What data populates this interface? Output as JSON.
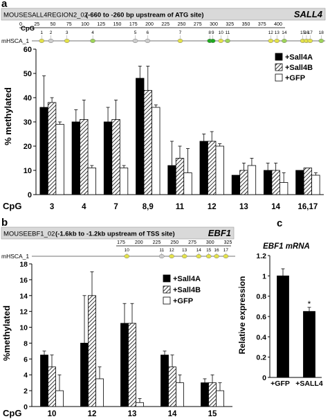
{
  "panels": {
    "a": {
      "letter": "a",
      "region_id": "MOUSESALL4REGION2_02",
      "region_range": "(-660 to -260 bp upstream of ATG site)",
      "gene": "SALL4",
      "cpg_label": "CpG",
      "track_label": "mHSCA_1",
      "bp_ticks": [
        "0",
        "25",
        "50",
        "75",
        "100",
        "125",
        "150",
        "175",
        "200",
        "225",
        "250",
        "275",
        "300",
        "325",
        "350",
        "375",
        "400"
      ],
      "sites": [
        {
          "n": "1",
          "bp": 16,
          "color": "#e3e14a"
        },
        {
          "n": "2",
          "bp": 31,
          "color": "#cccccc"
        },
        {
          "n": "3",
          "bp": 57,
          "color": "#e3e14a"
        },
        {
          "n": "4",
          "bp": 99,
          "color": "#9ed35a"
        },
        {
          "n": "5",
          "bp": 168,
          "color": "#cccccc"
        },
        {
          "n": "6",
          "bp": 188,
          "color": "#cccccc"
        },
        {
          "n": "7",
          "bp": 241,
          "color": "#e3e14a"
        },
        {
          "n": "8",
          "bp": 289,
          "color": "#1faa1f"
        },
        {
          "n": "9",
          "bp": 294,
          "color": "#1faa1f"
        },
        {
          "n": "10",
          "bp": 307,
          "color": "#e3e14a"
        },
        {
          "n": "11",
          "bp": 318,
          "color": "#9ed35a"
        },
        {
          "n": "12",
          "bp": 388,
          "color": "#e3e14a"
        },
        {
          "n": "13",
          "bp": 398,
          "color": "#e3e14a"
        },
        {
          "n": "14",
          "bp": 410,
          "color": "#9ed35a"
        },
        {
          "n": "15",
          "bp": 440,
          "color": "#e3e14a"
        },
        {
          "n": "16",
          "bp": 446,
          "color": "#e3e14a"
        },
        {
          "n": "17",
          "bp": 452,
          "color": "#e3e14a"
        },
        {
          "n": "18",
          "bp": 470,
          "color": "#9ed35a"
        }
      ]
    },
    "b": {
      "letter": "b",
      "region_id": "MOUSEEBF1_02",
      "region_range": "(-1.6kb to -1.2kb upstream of TSS site)",
      "gene": "EBF1",
      "track_label": "mHSCA_1",
      "bp_ticks": [
        "175",
        "200",
        "225",
        "250",
        "275",
        "300",
        "325"
      ],
      "sites": [
        {
          "n": "10",
          "bp": 183,
          "color": "#e3e14a"
        },
        {
          "n": "11",
          "bp": 232,
          "color": "#cccccc"
        },
        {
          "n": "12",
          "bp": 246,
          "color": "#e3e14a"
        },
        {
          "n": "13",
          "bp": 264,
          "color": "#e3e14a"
        },
        {
          "n": "14",
          "bp": 284,
          "color": "#e3e14a"
        },
        {
          "n": "15",
          "bp": 298,
          "color": "#e3e14a"
        },
        {
          "n": "16",
          "bp": 309,
          "color": "#e3e14a"
        },
        {
          "n": "17",
          "bp": 322,
          "color": "#e3e14a"
        }
      ]
    },
    "c": {
      "letter": "c",
      "title": "EBF1 mRNA"
    }
  },
  "colors": {
    "sall4a": "#000000",
    "sall4b_hatch": "#000000",
    "gfp": "#ffffff",
    "header_bg": "#d9d9d9"
  },
  "chart_data": [
    {
      "panel": "a",
      "type": "bar",
      "xlabel": "CpG",
      "ylabel": "% methylated",
      "categories": [
        "3",
        "4",
        "7",
        "8,9",
        "11",
        "12",
        "13",
        "14",
        "16,17"
      ],
      "ylim": [
        0,
        60
      ],
      "yticks": [
        "0",
        "10",
        "20",
        "30",
        "40",
        "50",
        "60"
      ],
      "legend": "top-right",
      "series": [
        {
          "name": "+Sall4A",
          "fill": "solid",
          "values": [
            36,
            30,
            30,
            48,
            12,
            22,
            8,
            10,
            10
          ],
          "errors": [
            13,
            5,
            6,
            5,
            10,
            3,
            0,
            3,
            0
          ]
        },
        {
          "name": "+Sall4B",
          "fill": "hatch",
          "values": [
            38,
            31,
            31,
            43,
            15,
            22,
            10,
            10,
            11
          ],
          "errors": [
            2,
            8,
            8,
            10,
            5,
            4,
            3,
            3,
            0
          ]
        },
        {
          "name": "+GFP",
          "fill": "white",
          "values": [
            29,
            11,
            11,
            36,
            9,
            20,
            12,
            5,
            8
          ],
          "errors": [
            1,
            1,
            1,
            1,
            10,
            1,
            3,
            4,
            1
          ]
        }
      ]
    },
    {
      "panel": "b",
      "type": "bar",
      "xlabel": "CpG",
      "ylabel": "%methylated",
      "categories": [
        "10",
        "12",
        "13",
        "14",
        "15"
      ],
      "ylim": [
        0,
        18
      ],
      "yticks": [
        "0",
        "2",
        "4",
        "6",
        "8",
        "10",
        "12",
        "14",
        "16",
        "18"
      ],
      "legend": "top-right",
      "series": [
        {
          "name": "+Sall4A",
          "fill": "solid",
          "values": [
            6.5,
            8,
            10.5,
            6.5,
            3
          ],
          "errors": [
            0.5,
            6,
            2.5,
            0.5,
            0.5
          ]
        },
        {
          "name": "+Sall4B",
          "fill": "hatch",
          "values": [
            5,
            14,
            10.5,
            5,
            3
          ],
          "errors": [
            1.5,
            3,
            2.5,
            1.5,
            1
          ]
        },
        {
          "name": "+GFP",
          "fill": "white",
          "values": [
            2,
            3.5,
            0.5,
            3,
            2
          ],
          "errors": [
            2,
            1.5,
            0.5,
            1,
            1
          ]
        }
      ]
    },
    {
      "panel": "c",
      "type": "bar",
      "title": "EBF1 mRNA",
      "ylabel": "Relative expression",
      "categories": [
        "+GFP",
        "+SALL4"
      ],
      "values": [
        1.0,
        0.65
      ],
      "errors": [
        0.07,
        0.04
      ],
      "ylim": [
        0,
        1.2
      ],
      "yticks": [
        "0",
        "0.2",
        "0.4",
        "0.6",
        "0.8",
        "1",
        "1.2"
      ],
      "annotations": [
        {
          "category": "+SALL4",
          "text": "*"
        }
      ]
    }
  ]
}
